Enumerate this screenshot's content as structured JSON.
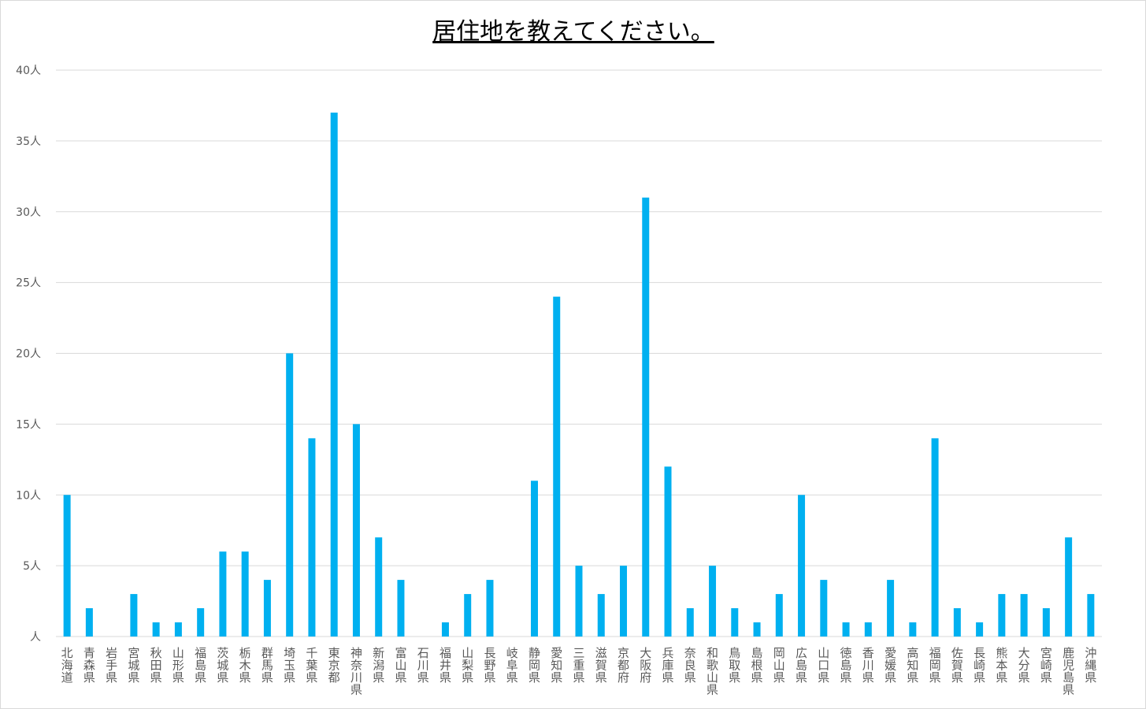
{
  "chart_data": {
    "type": "bar",
    "title": "居住地を教えてください。",
    "xlabel": "",
    "ylabel": "",
    "ylim": [
      0,
      40
    ],
    "yticks": [
      0,
      5,
      10,
      15,
      20,
      25,
      30,
      35,
      40
    ],
    "ytick_labels": [
      "人",
      "5人",
      "10人",
      "15人",
      "20人",
      "25人",
      "30人",
      "35人",
      "40人"
    ],
    "grid": true,
    "legend": "none",
    "bar_color": "#00b0f0",
    "categories": [
      "北海道",
      "青森県",
      "岩手県",
      "宮城県",
      "秋田県",
      "山形県",
      "福島県",
      "茨城県",
      "栃木県",
      "群馬県",
      "埼玉県",
      "千葉県",
      "東京都",
      "神奈川県",
      "新潟県",
      "富山県",
      "石川県",
      "福井県",
      "山梨県",
      "長野県",
      "岐阜県",
      "静岡県",
      "愛知県",
      "三重県",
      "滋賀県",
      "京都府",
      "大阪府",
      "兵庫県",
      "奈良県",
      "和歌山県",
      "鳥取県",
      "島根県",
      "岡山県",
      "広島県",
      "山口県",
      "徳島県",
      "香川県",
      "愛媛県",
      "高知県",
      "福岡県",
      "佐賀県",
      "長崎県",
      "熊本県",
      "大分県",
      "宮崎県",
      "鹿児島県",
      "沖縄県"
    ],
    "values": [
      10,
      2,
      0,
      3,
      1,
      1,
      2,
      6,
      6,
      4,
      20,
      14,
      37,
      15,
      7,
      4,
      0,
      1,
      3,
      4,
      0,
      11,
      24,
      5,
      3,
      5,
      31,
      12,
      2,
      5,
      2,
      1,
      3,
      10,
      4,
      1,
      1,
      4,
      1,
      14,
      2,
      1,
      3,
      3,
      2,
      7,
      3
    ]
  }
}
